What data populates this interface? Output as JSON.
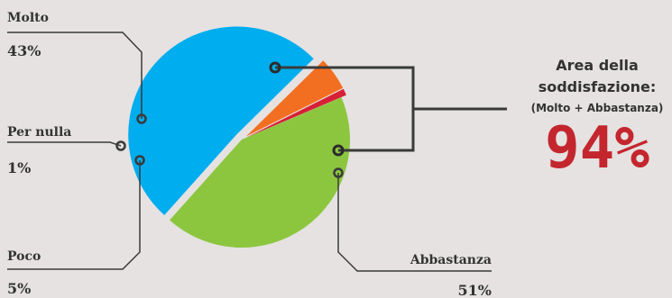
{
  "chart_data": {
    "type": "pie",
    "slices": [
      {
        "label": "Molto",
        "value_label": "43%",
        "value": 43,
        "color": "#8cc63f"
      },
      {
        "label": "Abbastanza",
        "value_label": "51%",
        "value": 51,
        "color": "#00adef"
      },
      {
        "label": "Poco",
        "value_label": "5%",
        "value": 5,
        "color": "#f26f21"
      },
      {
        "label": "Per nulla",
        "value_label": "1%",
        "value": 1,
        "color": "#d71f36"
      }
    ],
    "annotation": {
      "title_line1": "Area della",
      "title_line2": "soddisfazione:",
      "subtitle": "(Molto + Abbastanza)",
      "total": "94%"
    },
    "legend": "none"
  },
  "colors": {
    "background": "#e5e2e1",
    "leader_line": "#3a3a3a",
    "text": "#333333",
    "highlight": "#c4262e"
  }
}
